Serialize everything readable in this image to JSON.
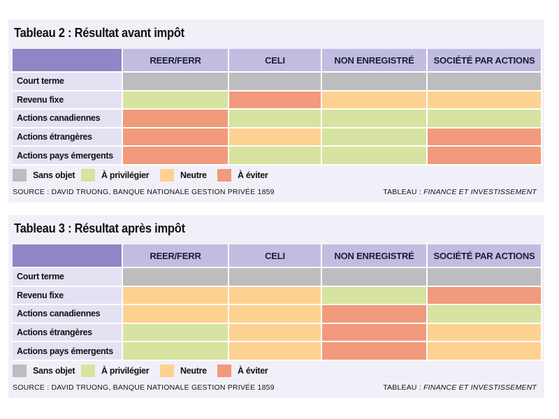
{
  "chart_data": [
    {
      "type": "table",
      "title": "Tableau 2 : Résultat avant impôt",
      "columns": [
        "REER/FERR",
        "CELI",
        "NON ENREGISTRÉ",
        "SOCIÉTÉ PAR ACTIONS"
      ],
      "rows": [
        "Court terme",
        "Revenu fixe",
        "Actions canadiennes",
        "Actions étrangères",
        "Actions pays émergents"
      ],
      "values": [
        [
          "na",
          "na",
          "na",
          "na"
        ],
        [
          "fav",
          "avoid",
          "neutral",
          "neutral"
        ],
        [
          "avoid",
          "fav",
          "fav",
          "fav"
        ],
        [
          "avoid",
          "neutral",
          "fav",
          "avoid"
        ],
        [
          "avoid",
          "fav",
          "fav",
          "avoid"
        ]
      ],
      "source": "SOURCE : DAVID TRUONG, BANQUE NATIONALE GESTION PRIVÉE 1859",
      "credit_prefix": "TABLEAU : ",
      "credit_italic": "FINANCE ET INVESTISSEMENT"
    },
    {
      "type": "table",
      "title": "Tableau 3 : Résultat après impôt",
      "columns": [
        "REER/FERR",
        "CELI",
        "NON ENREGISTRÉ",
        "SOCIÉTÉ PAR ACTIONS"
      ],
      "rows": [
        "Court terme",
        "Revenu fixe",
        "Actions canadiennes",
        "Actions étrangères",
        "Actions pays émergents"
      ],
      "values": [
        [
          "na",
          "na",
          "na",
          "na"
        ],
        [
          "neutral",
          "neutral",
          "fav",
          "avoid"
        ],
        [
          "neutral",
          "neutral",
          "avoid",
          "fav"
        ],
        [
          "fav",
          "neutral",
          "avoid",
          "neutral"
        ],
        [
          "fav",
          "neutral",
          "avoid",
          "neutral"
        ]
      ],
      "source": "SOURCE : DAVID TRUONG, BANQUE NATIONALE GESTION PRIVÉE 1859",
      "credit_prefix": "TABLEAU : ",
      "credit_italic": "FINANCE ET INVESTISSEMENT"
    }
  ],
  "legend": [
    {
      "key": "na",
      "label": "Sans objet",
      "color": "#bdbdbf"
    },
    {
      "key": "fav",
      "label": "À privilégier",
      "color": "#d7e3a0"
    },
    {
      "key": "neutral",
      "label": "Neutre",
      "color": "#fdd291"
    },
    {
      "key": "avoid",
      "label": "À éviter",
      "color": "#f19a7c"
    }
  ],
  "header_color": "#c1bde0",
  "corner_color": "#8f86c6",
  "label_color": "#e4e2f2"
}
